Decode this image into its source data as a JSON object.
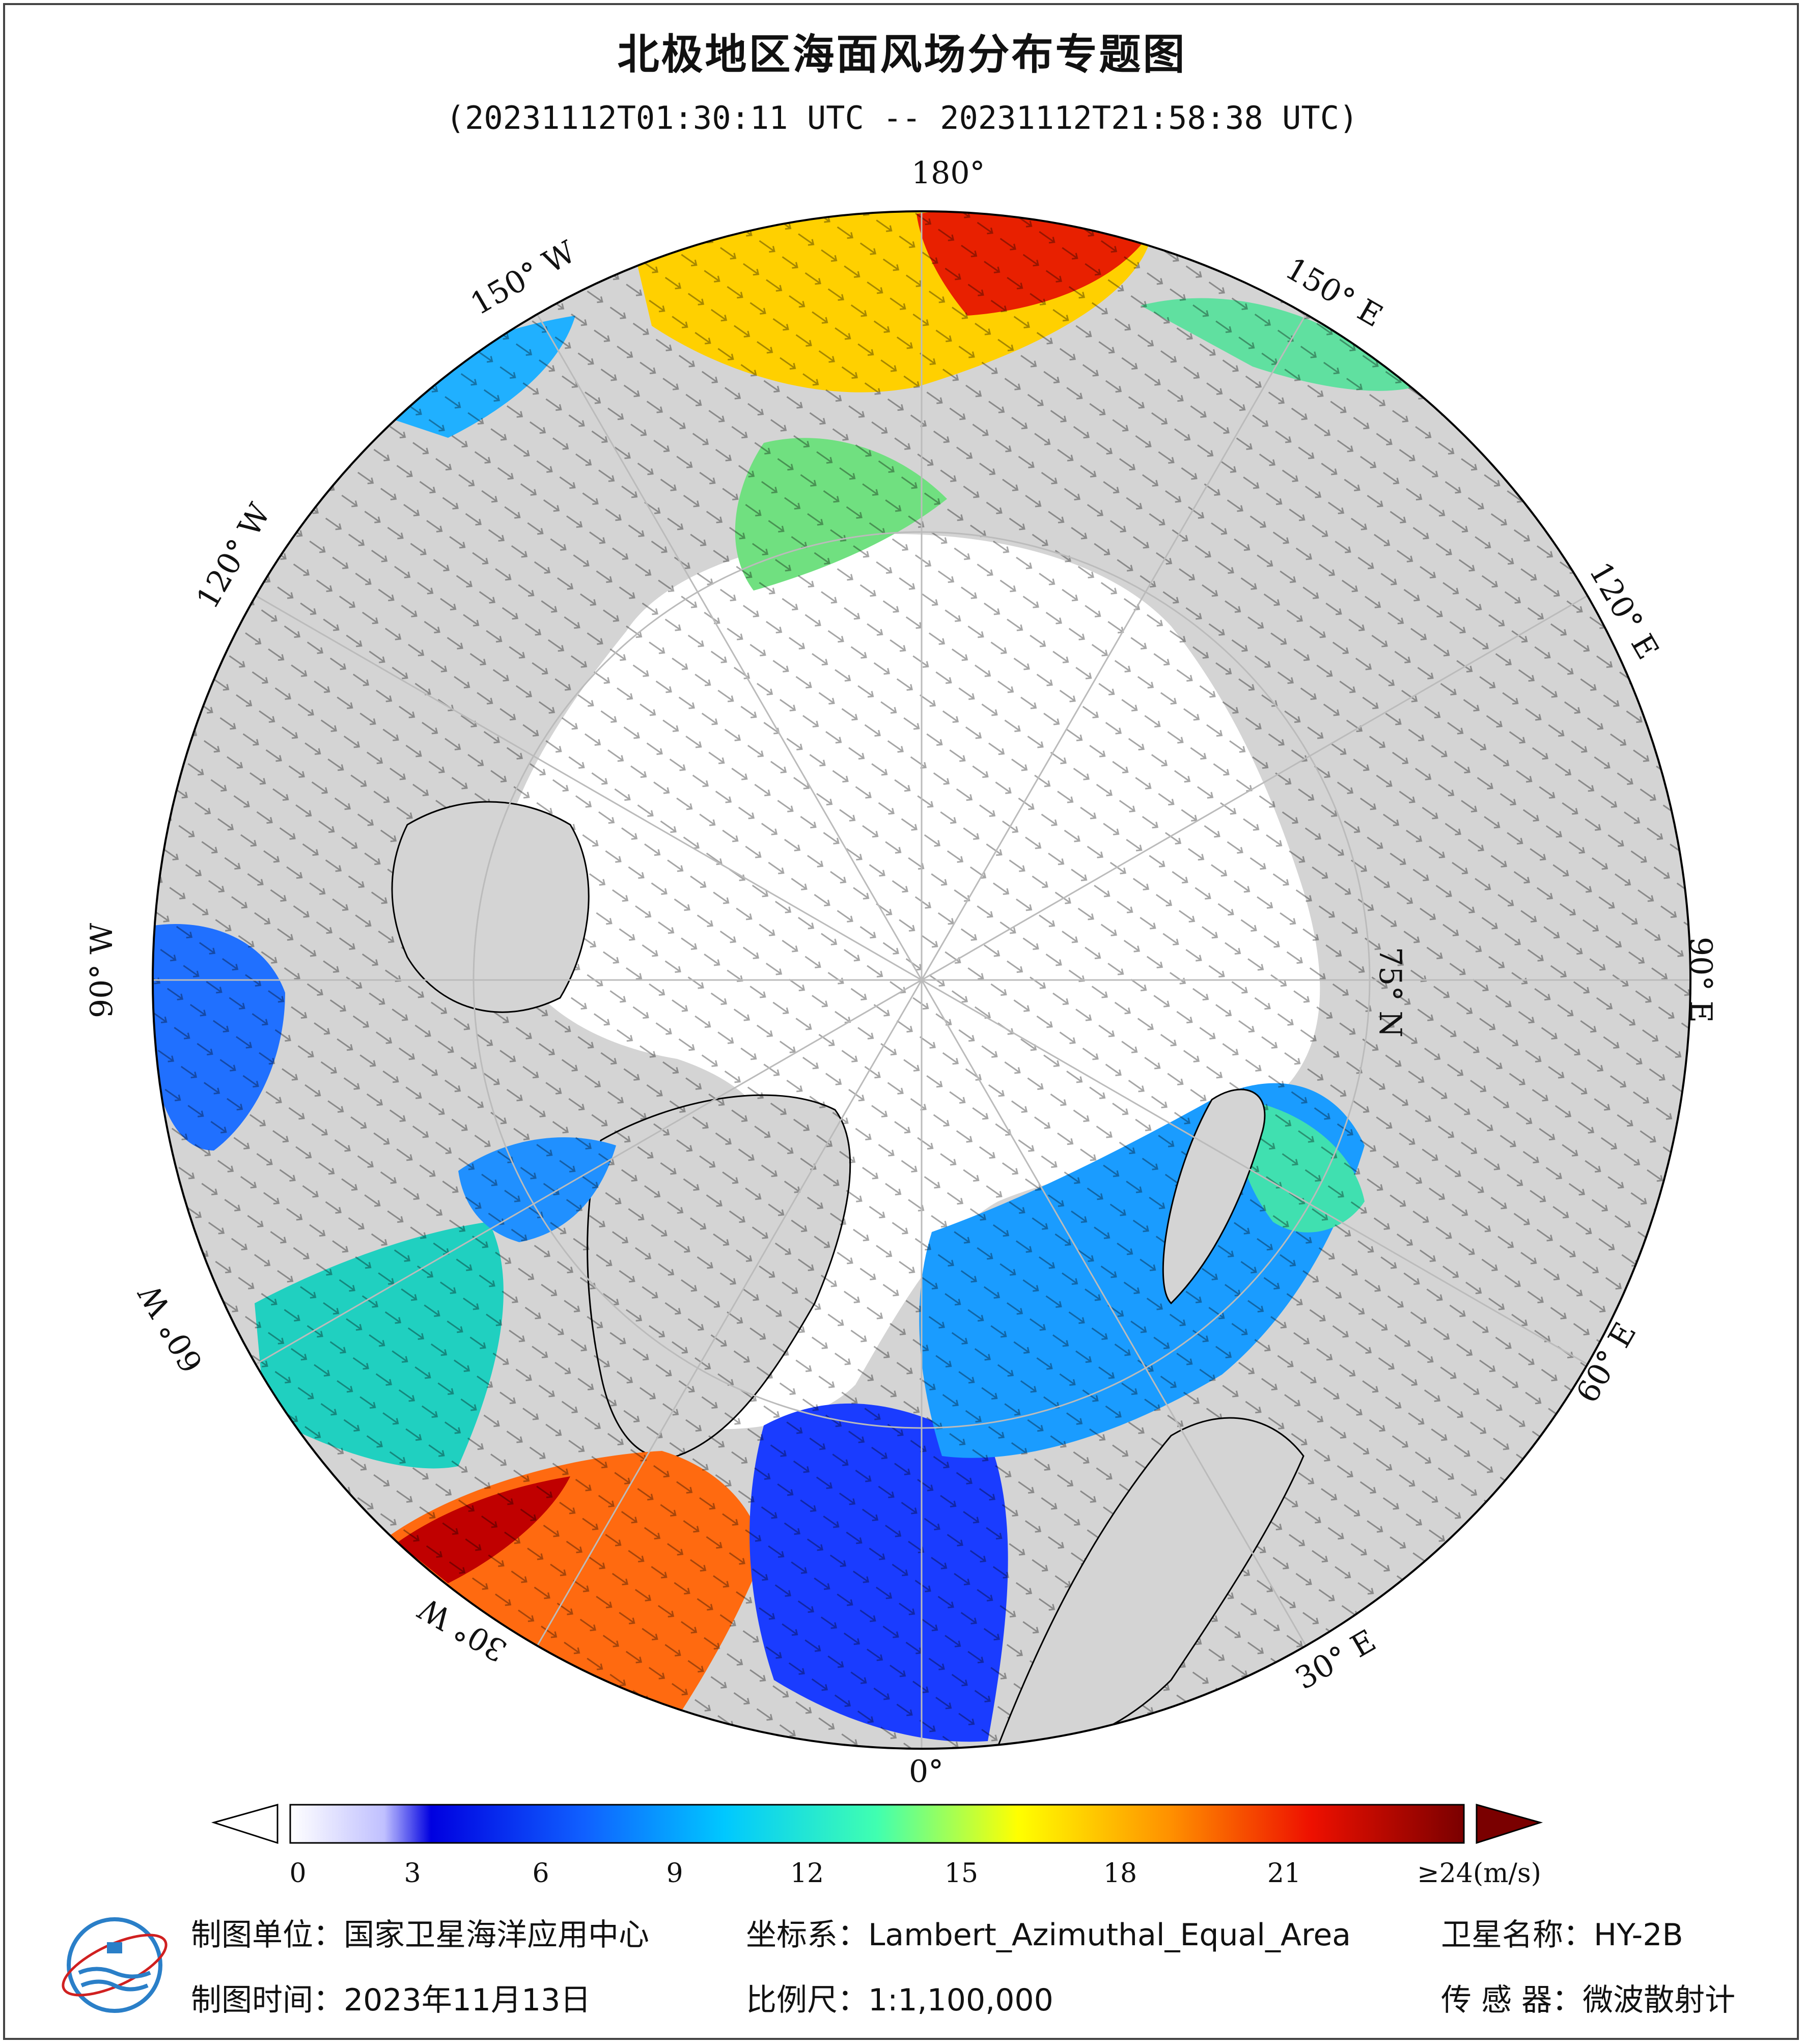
{
  "title": "北极地区海面风场分布专题图",
  "subtitle": "(20231112T01:30:11 UTC -- 20231112T21:58:38 UTC)",
  "map": {
    "projection": "Lambert_Azimuthal_Equal_Area",
    "lat_circle_label": "75° N",
    "lon_labels": {
      "deg180": "180°",
      "deg150w": "150° W",
      "deg120w": "120° W",
      "deg90w": "90° W",
      "deg60w": "60° W",
      "deg30w": "30° W",
      "deg0": "0°",
      "deg30e": "30° E",
      "deg60e": "60° E",
      "deg90e": "90° E",
      "deg120e": "120° E",
      "deg150e": "150° E"
    },
    "colors": {
      "land": "#d4d4d4",
      "ice": "#ffffff",
      "ocean_ring": "#d4d4d4",
      "grid": "#bbbbbb"
    }
  },
  "legend": {
    "ticks": [
      "0",
      "3",
      "6",
      "9",
      "12",
      "15",
      "18",
      "21",
      "≥24(m/s)"
    ],
    "unit": "m/s",
    "colors": [
      "#ffffff",
      "#0000e0",
      "#1060ff",
      "#00c8ff",
      "#40ffb0",
      "#ffff00",
      "#ff9000",
      "#ee1000",
      "#7a0000"
    ]
  },
  "footer": {
    "org_label": "制图单位：国家卫星海洋应用中心",
    "crs_label": "坐标系：Lambert_Azimuthal_Equal_Area",
    "satellite_label": "卫星名称：HY-2B",
    "date_label": "制图时间：2023年11月13日",
    "scale_label": "比例尺：1:1,100,000",
    "sensor_label": "传 感 器：微波散射计"
  }
}
